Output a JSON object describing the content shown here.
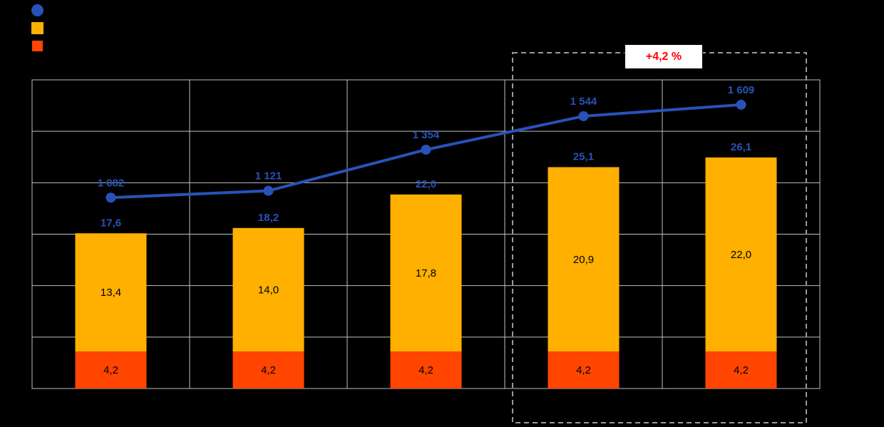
{
  "canvas": {
    "background": "#000000"
  },
  "legend": {
    "items": [
      {
        "name": "line-series-marker",
        "marker": "circle",
        "color": "#2952B8",
        "label": ""
      },
      {
        "name": "orange-series-marker",
        "marker": "square",
        "color": "#FFB000",
        "label": ""
      },
      {
        "name": "red-series-marker",
        "marker": "square",
        "color": "#FF4500",
        "label": ""
      }
    ]
  },
  "annotation": {
    "text": "+4,2 %",
    "text_color": "#FF0000",
    "background": "#FFFFFF",
    "highlight_last_categories": 2
  },
  "chart_data": {
    "type": "combo",
    "subtype": "stacked-bar-with-line",
    "categories": [
      "",
      "",
      "",
      "",
      ""
    ],
    "series": [
      {
        "name": "line",
        "type": "line",
        "color": "#2952B8",
        "values": [
          1082,
          1121,
          1354,
          1544,
          1609
        ],
        "labels": [
          "1 082",
          "1 121",
          "1 354",
          "1 544",
          "1 609"
        ],
        "axis": "secondary",
        "ylim": [
          0,
          1750
        ]
      },
      {
        "name": "bar-orange",
        "type": "bar",
        "color": "#FFB000",
        "values": [
          13.4,
          14.0,
          17.8,
          20.9,
          22.0
        ],
        "labels": [
          "13,4",
          "14,0",
          "17,8",
          "20,9",
          "22,0"
        ]
      },
      {
        "name": "bar-red",
        "type": "bar",
        "color": "#FF4500",
        "values": [
          4.2,
          4.2,
          4.2,
          4.2,
          4.2
        ],
        "labels": [
          "4,2",
          "4,2",
          "4,2",
          "4,2",
          "4,2"
        ]
      }
    ],
    "totals": {
      "values": [
        17.6,
        18.2,
        22.0,
        25.1,
        26.1
      ],
      "labels": [
        "17,6",
        "18,2",
        "22,0",
        "25,1",
        "26,1"
      ],
      "color": "#2952B8"
    },
    "bar_ylim": [
      0,
      35
    ],
    "grid": {
      "horizontal_lines": 7,
      "vertical_dividers": 4,
      "color": "#BFBFBF",
      "on": true
    },
    "legend_position": "top-left",
    "title": "",
    "xlabel": "",
    "ylabel": ""
  }
}
